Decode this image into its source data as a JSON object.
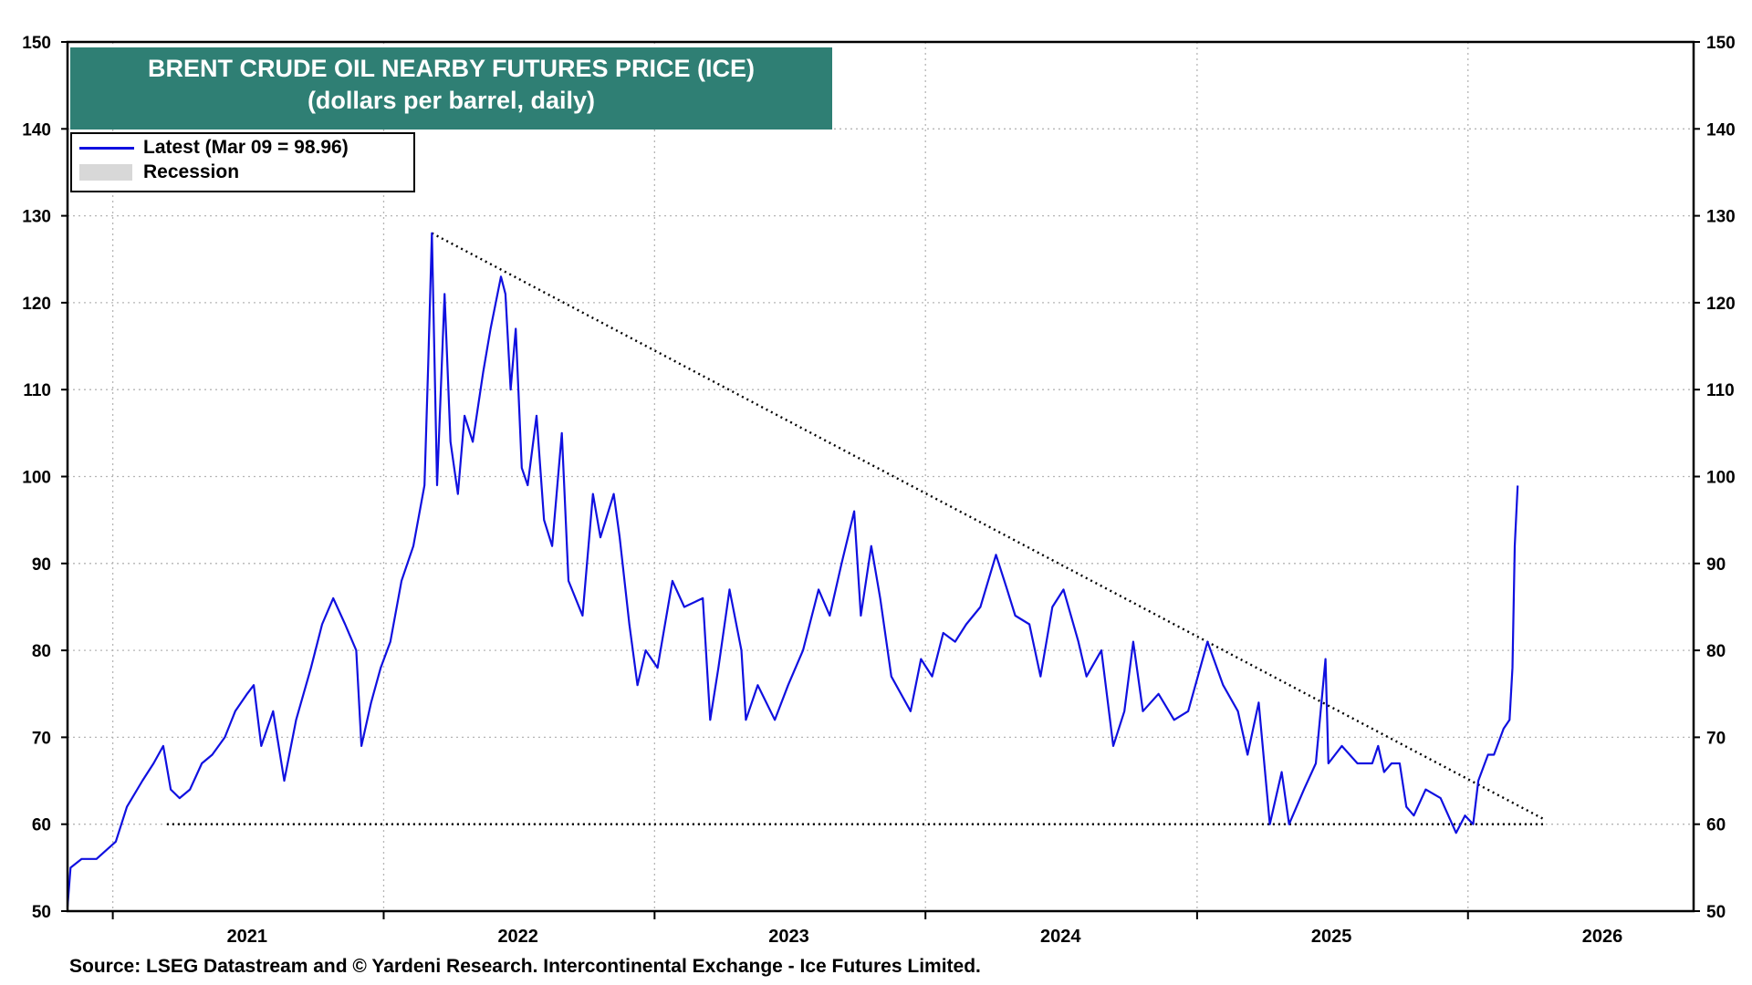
{
  "chart_data": {
    "type": "line",
    "title": "BRENT CRUDE OIL NEARBY FUTURES  PRICE (ICE)",
    "subtitle": "(dollars per barrel, daily)",
    "xlabel": "",
    "ylabel": "",
    "ylim": [
      50,
      150
    ],
    "yticks": [
      "150",
      "140",
      "130",
      "120",
      "110",
      "100",
      "90",
      "80",
      "70",
      "60",
      "50"
    ],
    "xticks": [
      "2021",
      "2022",
      "2023",
      "2024",
      "2025",
      "2026"
    ],
    "x_range": [
      "2020-11-01",
      "2026-11-01"
    ],
    "grid": true,
    "legend": {
      "position": "top-left",
      "entries": [
        {
          "label": "Latest (Mar 09 = 98.96)",
          "color": "#1010e0",
          "style": "line"
        },
        {
          "label": "Recession",
          "color": "#d8d8d8",
          "style": "box"
        }
      ]
    },
    "series": [
      {
        "name": "Latest (Mar 09 = 98.96)",
        "color": "#1010e0",
        "points": [
          [
            "2020-11-01",
            50.5
          ],
          [
            "2020-11-05",
            55
          ],
          [
            "2020-11-20",
            56
          ],
          [
            "2020-12-10",
            56
          ],
          [
            "2021-01-05",
            58
          ],
          [
            "2021-01-20",
            62
          ],
          [
            "2021-02-10",
            65
          ],
          [
            "2021-02-25",
            67
          ],
          [
            "2021-03-10",
            69
          ],
          [
            "2021-03-20",
            64
          ],
          [
            "2021-04-01",
            63
          ],
          [
            "2021-04-15",
            64
          ],
          [
            "2021-05-01",
            67
          ],
          [
            "2021-05-15",
            68
          ],
          [
            "2021-06-01",
            70
          ],
          [
            "2021-06-15",
            73
          ],
          [
            "2021-07-01",
            75
          ],
          [
            "2021-07-10",
            76
          ],
          [
            "2021-07-20",
            69
          ],
          [
            "2021-08-05",
            73
          ],
          [
            "2021-08-20",
            65
          ],
          [
            "2021-09-05",
            72
          ],
          [
            "2021-09-25",
            78
          ],
          [
            "2021-10-10",
            83
          ],
          [
            "2021-10-25",
            86
          ],
          [
            "2021-11-10",
            83
          ],
          [
            "2021-11-25",
            80
          ],
          [
            "2021-12-02",
            69
          ],
          [
            "2021-12-15",
            74
          ],
          [
            "2021-12-28",
            78
          ],
          [
            "2022-01-10",
            81
          ],
          [
            "2022-01-25",
            88
          ],
          [
            "2022-02-10",
            92
          ],
          [
            "2022-02-25",
            99
          ],
          [
            "2022-03-02",
            113
          ],
          [
            "2022-03-07",
            128
          ],
          [
            "2022-03-14",
            99
          ],
          [
            "2022-03-24",
            121
          ],
          [
            "2022-04-01",
            104
          ],
          [
            "2022-04-11",
            98
          ],
          [
            "2022-04-20",
            107
          ],
          [
            "2022-05-01",
            104
          ],
          [
            "2022-05-15",
            112
          ],
          [
            "2022-05-25",
            117
          ],
          [
            "2022-06-08",
            123
          ],
          [
            "2022-06-14",
            121
          ],
          [
            "2022-06-21",
            110
          ],
          [
            "2022-06-28",
            117
          ],
          [
            "2022-07-06",
            101
          ],
          [
            "2022-07-14",
            99
          ],
          [
            "2022-07-26",
            107
          ],
          [
            "2022-08-05",
            95
          ],
          [
            "2022-08-16",
            92
          ],
          [
            "2022-08-29",
            105
          ],
          [
            "2022-09-07",
            88
          ],
          [
            "2022-09-26",
            84
          ],
          [
            "2022-10-10",
            98
          ],
          [
            "2022-10-20",
            93
          ],
          [
            "2022-11-07",
            98
          ],
          [
            "2022-11-15",
            93
          ],
          [
            "2022-11-28",
            83
          ],
          [
            "2022-12-09",
            76
          ],
          [
            "2022-12-20",
            80
          ],
          [
            "2023-01-05",
            78
          ],
          [
            "2023-01-25",
            88
          ],
          [
            "2023-02-10",
            85
          ],
          [
            "2023-03-07",
            86
          ],
          [
            "2023-03-17",
            72
          ],
          [
            "2023-03-28",
            78
          ],
          [
            "2023-04-12",
            87
          ],
          [
            "2023-04-28",
            80
          ],
          [
            "2023-05-04",
            72
          ],
          [
            "2023-05-20",
            76
          ],
          [
            "2023-06-12",
            72
          ],
          [
            "2023-06-30",
            76
          ],
          [
            "2023-07-20",
            80
          ],
          [
            "2023-08-10",
            87
          ],
          [
            "2023-08-25",
            84
          ],
          [
            "2023-09-10",
            90
          ],
          [
            "2023-09-27",
            96
          ],
          [
            "2023-10-06",
            84
          ],
          [
            "2023-10-20",
            92
          ],
          [
            "2023-11-01",
            86
          ],
          [
            "2023-11-16",
            77
          ],
          [
            "2023-12-12",
            73
          ],
          [
            "2023-12-26",
            79
          ],
          [
            "2024-01-10",
            77
          ],
          [
            "2024-01-25",
            82
          ],
          [
            "2024-02-10",
            81
          ],
          [
            "2024-02-25",
            83
          ],
          [
            "2024-03-15",
            85
          ],
          [
            "2024-04-05",
            91
          ],
          [
            "2024-04-20",
            87
          ],
          [
            "2024-05-01",
            84
          ],
          [
            "2024-05-20",
            83
          ],
          [
            "2024-06-04",
            77
          ],
          [
            "2024-06-20",
            85
          ],
          [
            "2024-07-05",
            87
          ],
          [
            "2024-07-25",
            81
          ],
          [
            "2024-08-05",
            77
          ],
          [
            "2024-08-25",
            80
          ],
          [
            "2024-09-10",
            69
          ],
          [
            "2024-09-25",
            73
          ],
          [
            "2024-10-07",
            81
          ],
          [
            "2024-10-20",
            73
          ],
          [
            "2024-11-10",
            75
          ],
          [
            "2024-12-01",
            72
          ],
          [
            "2024-12-20",
            73
          ],
          [
            "2025-01-15",
            81
          ],
          [
            "2025-02-05",
            76
          ],
          [
            "2025-02-25",
            73
          ],
          [
            "2025-03-10",
            68
          ],
          [
            "2025-03-25",
            74
          ],
          [
            "2025-04-09",
            60
          ],
          [
            "2025-04-25",
            66
          ],
          [
            "2025-05-05",
            60
          ],
          [
            "2025-05-25",
            64
          ],
          [
            "2025-06-10",
            67
          ],
          [
            "2025-06-23",
            79
          ],
          [
            "2025-06-27",
            67
          ],
          [
            "2025-07-15",
            69
          ],
          [
            "2025-08-05",
            67
          ],
          [
            "2025-08-25",
            67
          ],
          [
            "2025-09-02",
            69
          ],
          [
            "2025-09-10",
            66
          ],
          [
            "2025-09-20",
            67
          ],
          [
            "2025-10-01",
            67
          ],
          [
            "2025-10-10",
            62
          ],
          [
            "2025-10-20",
            61
          ],
          [
            "2025-11-05",
            64
          ],
          [
            "2025-11-25",
            63
          ],
          [
            "2025-12-16",
            59
          ],
          [
            "2025-12-28",
            61
          ],
          [
            "2026-01-08",
            60
          ],
          [
            "2026-01-15",
            65
          ],
          [
            "2026-01-28",
            68
          ],
          [
            "2026-02-05",
            68
          ],
          [
            "2026-02-18",
            71
          ],
          [
            "2026-02-26",
            72
          ],
          [
            "2026-03-02",
            78
          ],
          [
            "2026-03-05",
            92
          ],
          [
            "2026-03-09",
            98.96
          ]
        ]
      }
    ],
    "annotations": [
      {
        "type": "dotted-trendline",
        "from": [
          "2022-03-07",
          128
        ],
        "to": [
          "2026-04-15",
          60.5
        ]
      },
      {
        "type": "dotted-hline",
        "y": 60,
        "from": "2021-03-15",
        "to": "2026-04-15"
      }
    ]
  },
  "footer": {
    "source": "Source: LSEG Datastream and © Yardeni Research. Intercontinental Exchange - Ice Futures Limited."
  }
}
